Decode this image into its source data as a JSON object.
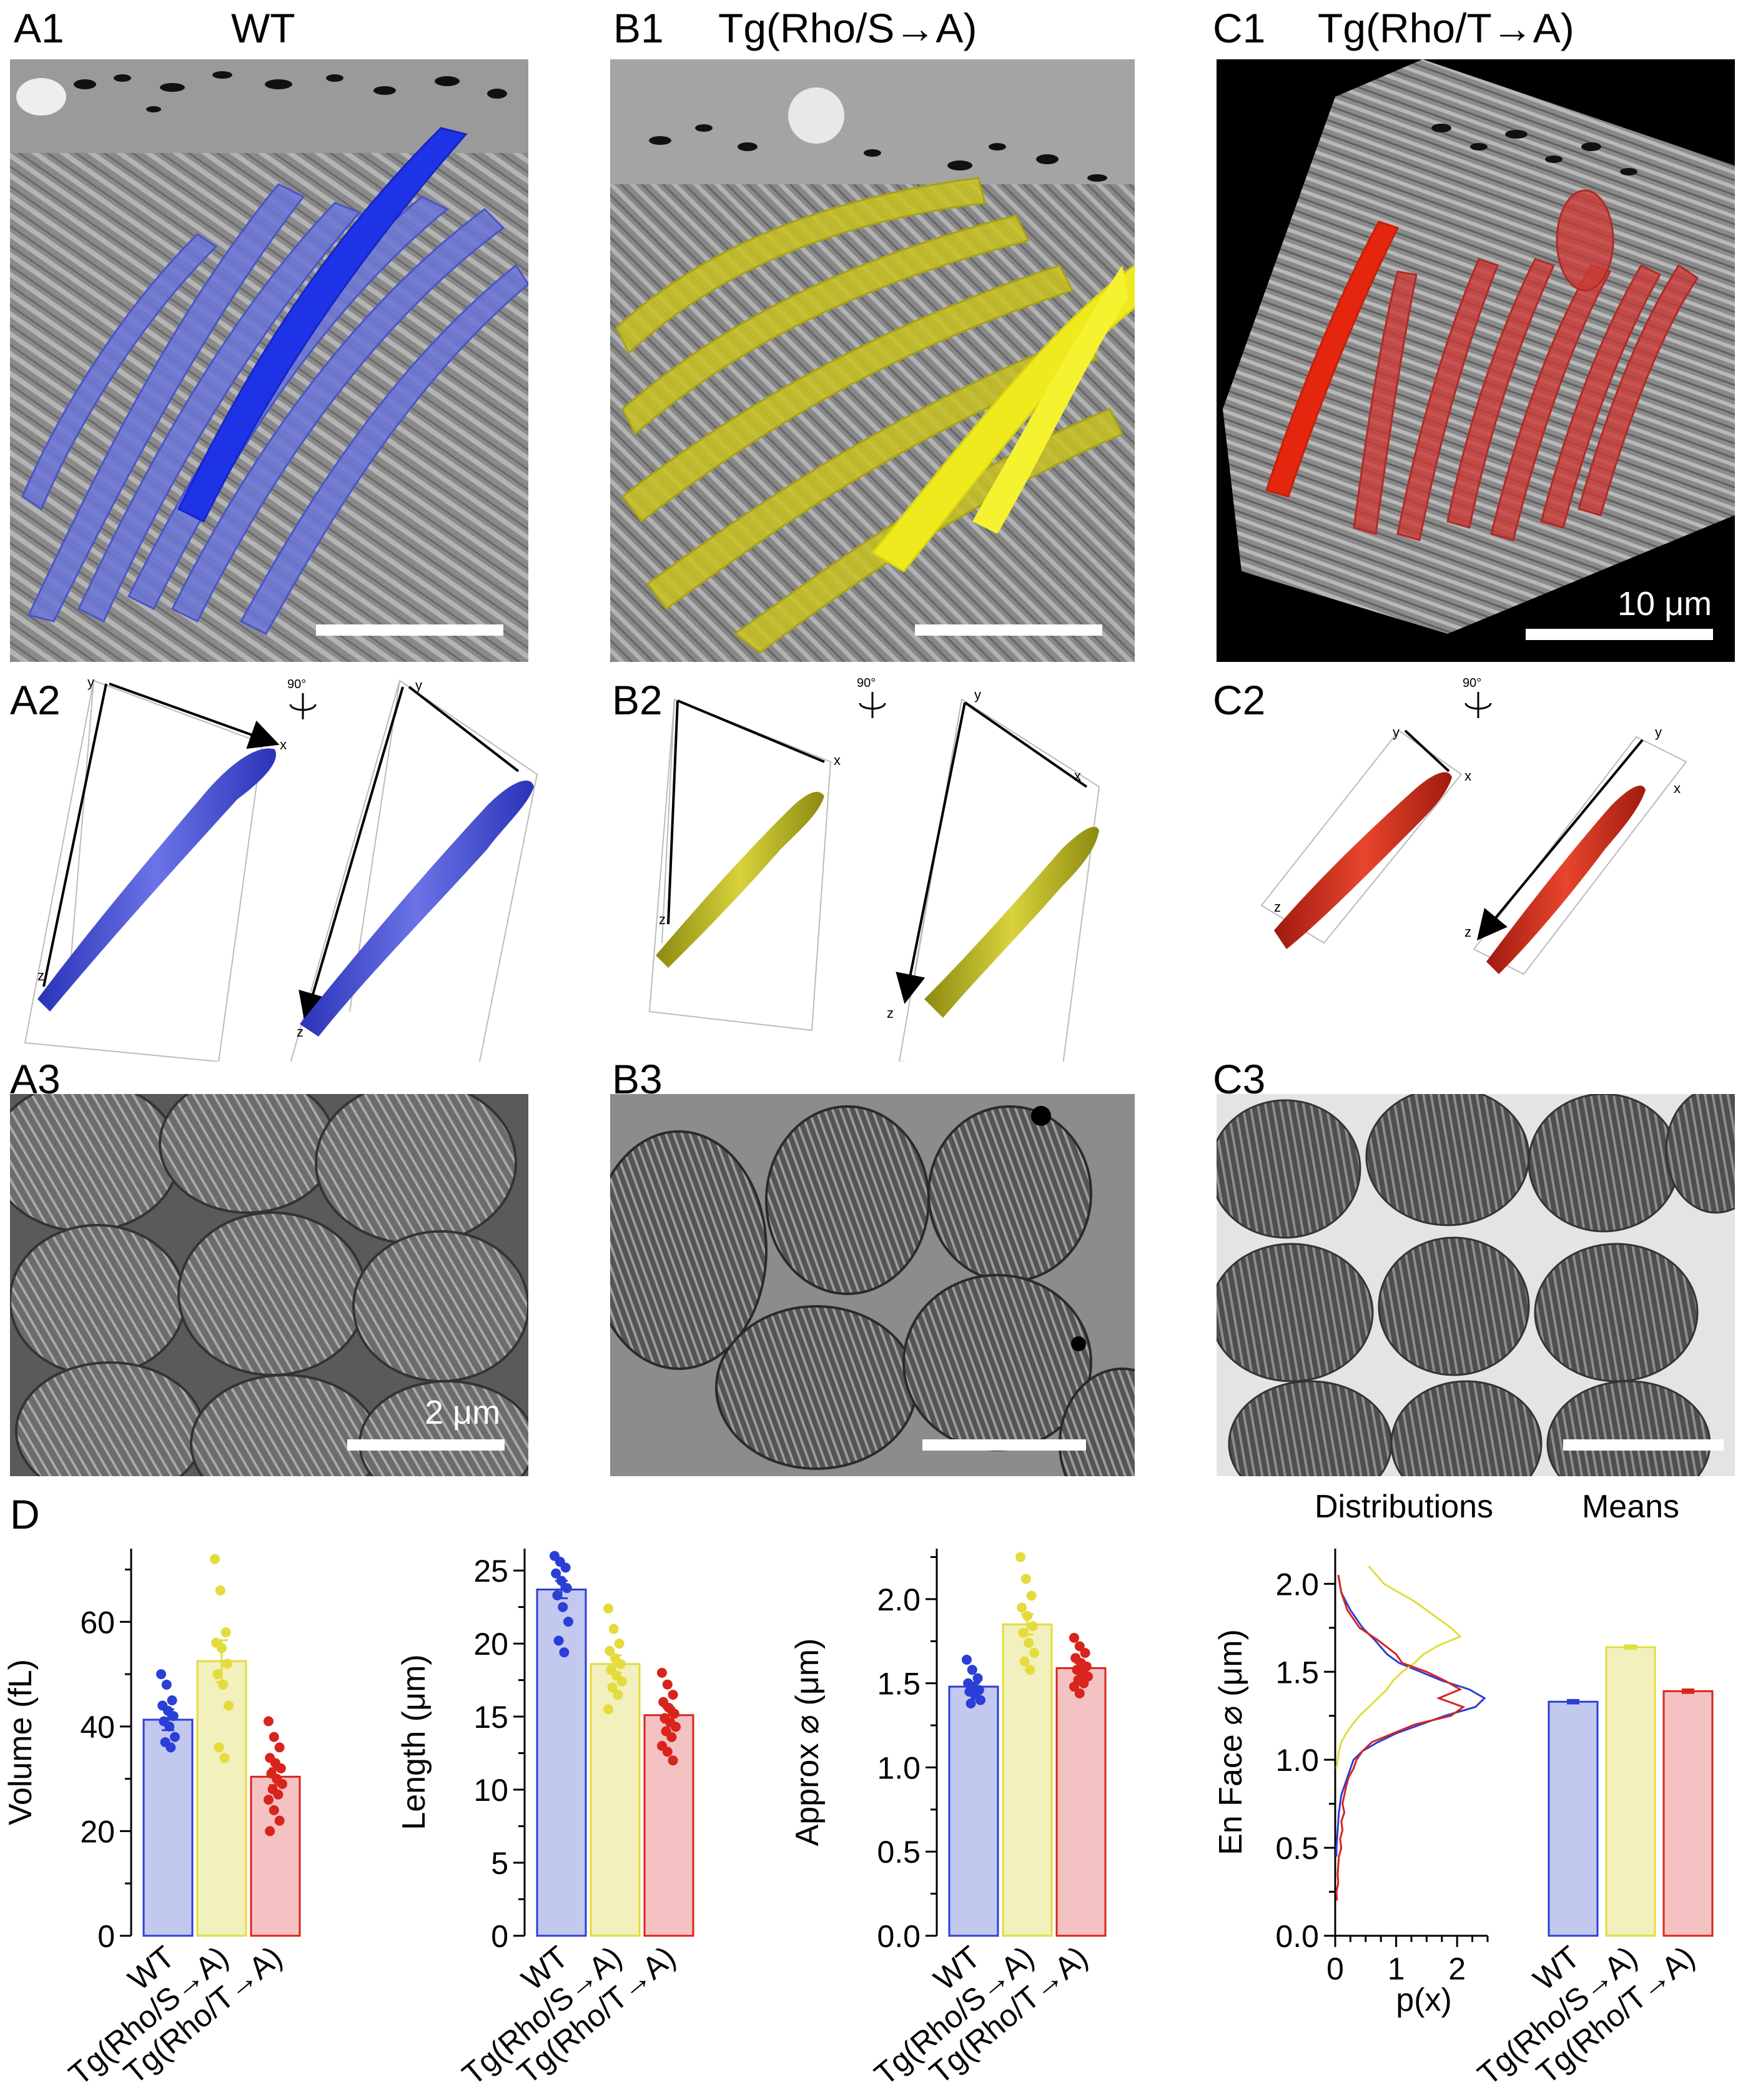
{
  "panels": {
    "A1": {
      "label": "A1",
      "title": "WT"
    },
    "B1": {
      "label": "B1",
      "title": "Tg(Rho/S→A)"
    },
    "C1": {
      "label": "C1",
      "title": "Tg(Rho/T→A)",
      "scale": "10 μm"
    },
    "A2": {
      "label": "A2"
    },
    "B2": {
      "label": "B2"
    },
    "C2": {
      "label": "C2"
    },
    "A3": {
      "label": "A3",
      "scale": "2 μm"
    },
    "B3": {
      "label": "B3"
    },
    "C3": {
      "label": "C3"
    },
    "D": {
      "label": "D"
    }
  },
  "rotation_label": "90°",
  "axes_letters": {
    "x": "x",
    "y": "y",
    "z": "z"
  },
  "colors": {
    "wt": "#2b3fd6",
    "wt_fill": "#c3c8ef",
    "s2a": "#e3dc3c",
    "s2a_fill": "#f2f0bd",
    "t2a": "#d8241c",
    "t2a_fill": "#f4c2c2"
  },
  "chart_data": [
    {
      "type": "bar",
      "categories": [
        "WT",
        "Tg(Rho/S→A)",
        "Tg(Rho/T→A)"
      ],
      "values": [
        41.3,
        52.5,
        30.4
      ],
      "errors": [
        2.0,
        4.0,
        1.6
      ],
      "points": [
        [
          50,
          48,
          45,
          44,
          43,
          42,
          41,
          40,
          38,
          37,
          36
        ],
        [
          72,
          66,
          58,
          56,
          55,
          52,
          50,
          48,
          44,
          36,
          34
        ],
        [
          41,
          38,
          36,
          34,
          33,
          32,
          31,
          30,
          29,
          28,
          27,
          26,
          24,
          22,
          20
        ]
      ],
      "ylabel": "Volume (fL)",
      "ylim": [
        0,
        74
      ],
      "yticks": [
        0,
        20,
        40,
        60
      ]
    },
    {
      "type": "bar",
      "categories": [
        "WT",
        "Tg(Rho/S→A)",
        "Tg(Rho/T→A)"
      ],
      "values": [
        23.7,
        18.6,
        15.1
      ],
      "errors": [
        0.6,
        0.6,
        0.5
      ],
      "points": [
        [
          26.0,
          25.6,
          25.2,
          24.8,
          24.3,
          23.8,
          23.3,
          22.5,
          21.5,
          20.2,
          19.4
        ],
        [
          22.4,
          21.0,
          20.0,
          19.5,
          19.0,
          18.6,
          18.2,
          17.8,
          17.4,
          17.0,
          16.5,
          15.5
        ],
        [
          18.0,
          17.2,
          16.5,
          16.0,
          15.6,
          15.2,
          14.9,
          14.6,
          14.3,
          14.0,
          13.6,
          13.0,
          12.6,
          12.0
        ]
      ],
      "ylabel": "Length (μm)",
      "ylim": [
        0,
        26.5
      ],
      "yticks": [
        0,
        5,
        10,
        15,
        20,
        25
      ]
    },
    {
      "type": "bar",
      "categories": [
        "WT",
        "Tg(Rho/S→A)",
        "Tg(Rho/T→A)"
      ],
      "values": [
        1.48,
        1.85,
        1.59
      ],
      "errors": [
        0.02,
        0.06,
        0.03
      ],
      "points": [
        [
          1.64,
          1.58,
          1.53,
          1.5,
          1.48,
          1.46,
          1.45,
          1.43,
          1.4,
          1.38
        ],
        [
          2.25,
          2.12,
          2.02,
          1.95,
          1.9,
          1.84,
          1.8,
          1.74,
          1.68,
          1.63,
          1.58
        ],
        [
          1.77,
          1.72,
          1.68,
          1.65,
          1.62,
          1.6,
          1.58,
          1.56,
          1.54,
          1.52,
          1.5,
          1.48,
          1.44
        ]
      ],
      "ylabel": "Approx ⌀ (μm)",
      "ylim": [
        0,
        2.3
      ],
      "yticks": [
        0.0,
        0.5,
        1.0,
        1.5,
        2.0
      ],
      "ytick_labels": [
        "0.0",
        "0.5",
        "1.0",
        "1.5",
        "2.0"
      ]
    },
    {
      "type": "line",
      "title": "Distributions",
      "xlabel": "p(x)",
      "ylabel": "En Face ⌀ (μm)",
      "xlim": [
        0,
        2.5
      ],
      "ylim": [
        0,
        2.2
      ],
      "xticks": [
        0,
        1,
        2
      ],
      "yticks": [
        0.0,
        0.5,
        1.0,
        1.5,
        2.0
      ],
      "ytick_labels": [
        "0.0",
        "0.5",
        "1.0",
        "1.5",
        "2.0"
      ],
      "series": [
        {
          "color": "#2b3fd6",
          "y": [
            2.05,
            1.95,
            1.85,
            1.75,
            1.68,
            1.6,
            1.55,
            1.5,
            1.45,
            1.4,
            1.35,
            1.3,
            1.25,
            1.2,
            1.15,
            1.1,
            1.05,
            1.0,
            0.95,
            0.9,
            0.85,
            0.8,
            0.75,
            0.7,
            0.65,
            0.6,
            0.55,
            0.5,
            0.45
          ],
          "x": [
            0.05,
            0.1,
            0.25,
            0.45,
            0.65,
            0.85,
            1.05,
            1.4,
            1.75,
            2.2,
            2.45,
            2.3,
            1.8,
            1.4,
            1.0,
            0.7,
            0.45,
            0.3,
            0.25,
            0.2,
            0.15,
            0.1,
            0.08,
            0.06,
            0.05,
            0.04,
            0.03,
            0.02,
            0.02
          ]
        },
        {
          "color": "#e3dc3c",
          "y": [
            2.1,
            2.0,
            1.95,
            1.9,
            1.85,
            1.8,
            1.75,
            1.7,
            1.65,
            1.6,
            1.55,
            1.5,
            1.45,
            1.4,
            1.35,
            1.3,
            1.25,
            1.2,
            1.15,
            1.1,
            1.05,
            1.0,
            0.95
          ],
          "x": [
            0.55,
            0.8,
            1.05,
            1.3,
            1.5,
            1.7,
            1.9,
            2.05,
            1.7,
            1.45,
            1.3,
            1.1,
            0.95,
            0.85,
            0.7,
            0.55,
            0.4,
            0.28,
            0.18,
            0.1,
            0.06,
            0.04,
            0.02
          ]
        },
        {
          "color": "#d8241c",
          "y": [
            2.05,
            1.95,
            1.85,
            1.75,
            1.68,
            1.6,
            1.55,
            1.5,
            1.45,
            1.4,
            1.35,
            1.3,
            1.25,
            1.2,
            1.15,
            1.1,
            1.05,
            1.0,
            0.95,
            0.9,
            0.85,
            0.8,
            0.75,
            0.7,
            0.65,
            0.6,
            0.55,
            0.5,
            0.45,
            0.4,
            0.35,
            0.3,
            0.25,
            0.2
          ],
          "x": [
            0.05,
            0.1,
            0.2,
            0.4,
            0.7,
            1.0,
            1.1,
            1.5,
            1.8,
            2.05,
            1.7,
            2.1,
            1.9,
            1.3,
            0.95,
            0.6,
            0.45,
            0.35,
            0.3,
            0.22,
            0.18,
            0.15,
            0.12,
            0.15,
            0.1,
            0.12,
            0.08,
            0.1,
            0.06,
            0.05,
            0.04,
            0.05,
            0.02,
            0.03
          ]
        }
      ]
    },
    {
      "type": "bar",
      "title": "Means",
      "categories": [
        "WT",
        "Tg(Rho/S→A)",
        "Tg(Rho/T→A)"
      ],
      "values": [
        1.33,
        1.64,
        1.39
      ],
      "errors": [
        0.01,
        0.01,
        0.01
      ],
      "ylim": [
        0,
        2.2
      ]
    }
  ]
}
